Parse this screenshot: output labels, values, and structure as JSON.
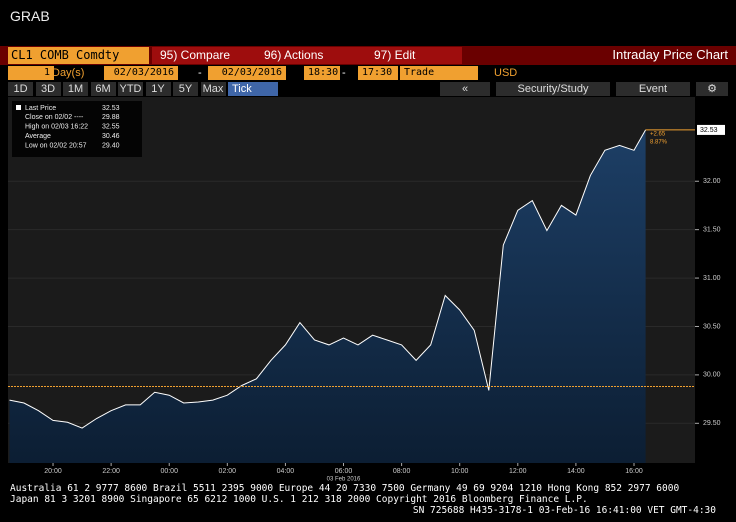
{
  "header": {
    "title": "GRAB"
  },
  "toolbar": {
    "security": "CL1 COMB Comdty",
    "buttons": [
      "95) Compare",
      "96) Actions",
      "97) Edit"
    ],
    "title": "Intraday Price Chart"
  },
  "range": {
    "count": "1",
    "unit": "Day(s)",
    "start_date": "02/03/2016",
    "end_date": "02/03/2016",
    "start_time": "18:30",
    "end_time": "17:30",
    "separators": [
      "-",
      "-"
    ],
    "field": "Trade",
    "currency": "USD"
  },
  "periods": {
    "options": [
      "1D",
      "3D",
      "1M",
      "6M",
      "YTD",
      "1Y",
      "5Y",
      "Max"
    ],
    "tick": "Tick",
    "tools": [
      "Security/Study",
      "Event"
    ]
  },
  "chart_data": {
    "type": "area",
    "x_date": "03 Feb 2016",
    "xlim": [
      18.45,
      42.1
    ],
    "xticks": [
      {
        "value": 20,
        "label": "20:00"
      },
      {
        "value": 22,
        "label": "22:00"
      },
      {
        "value": 24,
        "label": "00:00"
      },
      {
        "value": 26,
        "label": "02:00"
      },
      {
        "value": 28,
        "label": "04:00"
      },
      {
        "value": 30,
        "label": "06:00"
      },
      {
        "value": 32,
        "label": "08:00"
      },
      {
        "value": 34,
        "label": "10:00"
      },
      {
        "value": 36,
        "label": "12:00"
      },
      {
        "value": 38,
        "label": "14:00"
      },
      {
        "value": 40,
        "label": "16:00"
      }
    ],
    "ylim": [
      29.09,
      32.87
    ],
    "yticks": [
      {
        "value": 29.5,
        "label": "29.50"
      },
      {
        "value": 30,
        "label": "30.00"
      },
      {
        "value": 30.5,
        "label": "30.50"
      },
      {
        "value": 31,
        "label": "31.00"
      },
      {
        "value": 31.5,
        "label": "31.50"
      },
      {
        "value": 32,
        "label": "32.00"
      }
    ],
    "grid": true,
    "series": [
      {
        "name": "Last Price",
        "color": "#ffffff",
        "x": [
          18.5,
          19,
          19.5,
          20,
          20.5,
          21,
          21.5,
          22,
          22.5,
          23,
          23.5,
          24,
          24.5,
          25,
          25.5,
          26,
          26.5,
          27,
          27.5,
          28,
          28.5,
          29,
          29.5,
          30,
          30.5,
          31,
          31.5,
          32,
          32.5,
          33,
          33.5,
          34,
          34.5,
          35,
          35.5,
          36,
          36.5,
          37,
          37.5,
          38,
          38.5,
          39,
          39.5,
          40,
          40.4
        ],
        "values": [
          29.74,
          29.71,
          29.63,
          29.53,
          29.51,
          29.45,
          29.55,
          29.63,
          29.69,
          29.69,
          29.82,
          29.79,
          29.71,
          29.72,
          29.74,
          29.79,
          29.89,
          29.96,
          30.15,
          30.31,
          30.54,
          30.36,
          30.31,
          30.38,
          30.31,
          30.41,
          30.36,
          30.31,
          30.15,
          30.31,
          30.82,
          30.67,
          30.46,
          29.84,
          31.34,
          31.7,
          31.8,
          31.49,
          31.75,
          31.65,
          32.06,
          32.32,
          32.37,
          32.32,
          32.53
        ]
      }
    ],
    "stats": [
      {
        "label": "Close on 02/02 ----",
        "value": 29.88
      },
      {
        "label": "High on 02/03 16:22",
        "value": 32.55
      },
      {
        "label": "Average",
        "value": 30.46
      },
      {
        "label": "Low on 02/02 20:57",
        "value": 29.4,
        "value_label": "29.40"
      }
    ],
    "last_value": 32.53,
    "annotations": [
      "+2.65",
      "8.87%"
    ]
  },
  "footer": {
    "lines": [
      "Australia 61 2 9777 8600 Brazil 5511 2395 9000 Europe 44 20 7330 7500 Germany 49 69 9204 1210 Hong Kong 852 2977 6000",
      "Japan 81 3 3201 8900          Singapore 65 6212 1000          U.S. 1 212 318 2000          Copyright 2016 Bloomberg Finance L.P.",
      "SN 725688 H435-3178-1 03-Feb-16 16:41:00 VET  GMT-4:30"
    ]
  }
}
